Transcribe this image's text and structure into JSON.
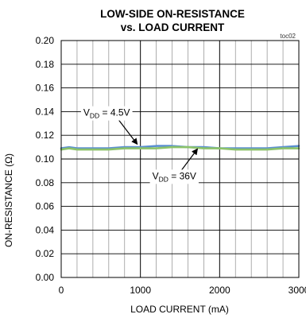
{
  "chart_data": {
    "type": "line",
    "title_lines": [
      "LOW-SIDE ON-RESISTANCE",
      "vs. LOAD CURRENT"
    ],
    "tag": "toc02",
    "xlabel": "LOAD CURRENT (mA)",
    "ylabel": "ON-RESISTANCE (Ω)",
    "xlim": [
      0,
      3000
    ],
    "ylim": [
      0,
      0.2
    ],
    "x_ticks": [
      0,
      1000,
      2000,
      3000
    ],
    "x_tick_labels": [
      "0",
      "1000",
      "2000",
      "3000"
    ],
    "y_ticks": [
      0,
      0.02,
      0.04,
      0.06,
      0.08,
      0.1,
      0.12,
      0.14,
      0.16,
      0.18,
      0.2
    ],
    "y_tick_labels": [
      "0.00",
      "0.02",
      "0.04",
      "0.06",
      "0.08",
      "0.10",
      "0.12",
      "0.14",
      "0.16",
      "0.18",
      "0.20"
    ],
    "x_minor_step": 200,
    "grid": true,
    "series": [
      {
        "color": "#5b8fd0",
        "x": [
          0,
          100,
          200,
          400,
          600,
          800,
          1000,
          1200,
          1400,
          1600,
          1800,
          2000,
          2200,
          2400,
          2600,
          2800,
          3000
        ],
        "y": [
          0.109,
          0.11,
          0.109,
          0.109,
          0.109,
          0.11,
          0.11,
          0.111,
          0.111,
          0.11,
          0.11,
          0.109,
          0.109,
          0.109,
          0.109,
          0.11,
          0.111
        ]
      },
      {
        "color": "#8cc36a",
        "x": [
          0,
          100,
          200,
          400,
          600,
          800,
          1000,
          1200,
          1400,
          1600,
          1800,
          2000,
          2200,
          2400,
          2600,
          2800,
          3000
        ],
        "y": [
          0.108,
          0.109,
          0.108,
          0.108,
          0.108,
          0.109,
          0.109,
          0.109,
          0.11,
          0.11,
          0.109,
          0.109,
          0.108,
          0.108,
          0.108,
          0.109,
          0.109
        ]
      }
    ],
    "annotations": [
      {
        "main": "V",
        "sub": "DD",
        "rest": " = 4.5V",
        "text_x": 280,
        "text_y": 0.1365,
        "arrow_from": [
          720,
          0.1335
        ],
        "arrow_to": [
          960,
          0.1125
        ]
      },
      {
        "main": "V",
        "sub": "DD",
        "rest": " = 36V",
        "text_x": 1150,
        "text_y": 0.083,
        "arrow_from": [
          1490,
          0.088
        ],
        "arrow_to": [
          1720,
          0.1085
        ]
      }
    ]
  }
}
